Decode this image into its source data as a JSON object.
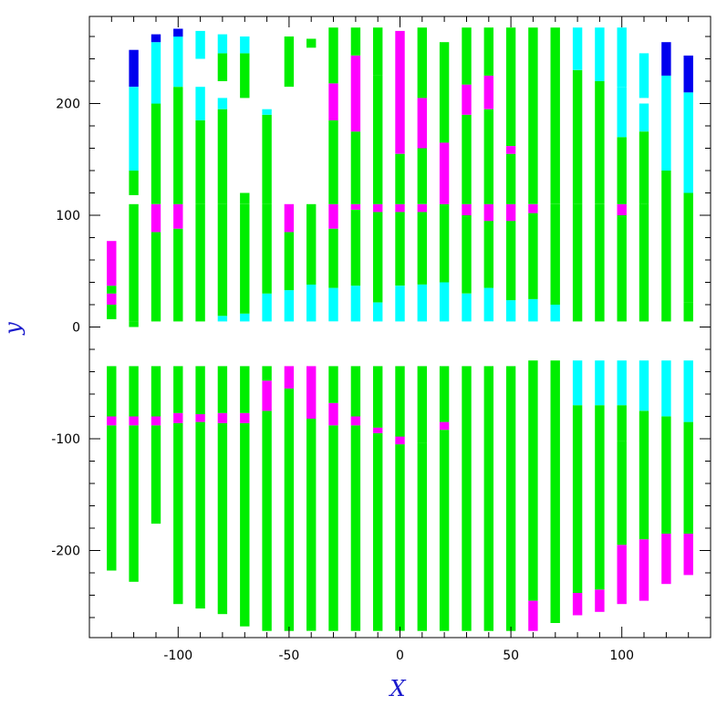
{
  "chart_data": {
    "type": "bar",
    "xlabel": "X",
    "ylabel": "y",
    "xlim": [
      -140,
      140
    ],
    "ylim": [
      -278,
      278
    ],
    "xticks": [
      -100,
      -50,
      0,
      50,
      100
    ],
    "yticks": [
      200,
      100,
      0,
      -100,
      -200
    ],
    "colors": {
      "green": "#00ee00",
      "magenta": "#ff00ff",
      "cyan": "#00ffff",
      "blue": "#0000ee"
    },
    "column_x": [
      -130,
      -120,
      -110,
      -100,
      -90,
      -80,
      -70,
      -60,
      -50,
      -40,
      -30,
      -20,
      -10,
      0,
      10,
      20,
      30,
      40,
      50,
      60,
      70,
      80,
      90,
      100,
      110,
      120,
      130
    ],
    "upper_segments": [
      [
        [
          7,
          20,
          "green"
        ],
        [
          20,
          30,
          "magenta"
        ],
        [
          30,
          37,
          "green"
        ],
        [
          37,
          77,
          "magenta"
        ]
      ],
      [
        [
          0,
          5,
          "green"
        ],
        [
          5,
          110,
          "green"
        ],
        [
          118,
          140,
          "green"
        ],
        [
          140,
          215,
          "cyan"
        ],
        [
          215,
          248,
          "blue"
        ]
      ],
      [
        [
          5,
          85,
          "green"
        ],
        [
          85,
          110,
          "magenta"
        ],
        [
          110,
          200,
          "green"
        ],
        [
          200,
          255,
          "cyan"
        ],
        [
          255,
          262,
          "blue"
        ]
      ],
      [
        [
          5,
          88,
          "green"
        ],
        [
          88,
          110,
          "magenta"
        ],
        [
          110,
          215,
          "green"
        ],
        [
          215,
          260,
          "cyan"
        ],
        [
          260,
          267,
          "blue"
        ]
      ],
      [
        [
          5,
          110,
          "green"
        ],
        [
          110,
          185,
          "green"
        ],
        [
          185,
          215,
          "cyan"
        ],
        [
          240,
          265,
          "cyan"
        ]
      ],
      [
        [
          5,
          10,
          "cyan"
        ],
        [
          10,
          110,
          "green"
        ],
        [
          110,
          195,
          "green"
        ],
        [
          195,
          205,
          "cyan"
        ],
        [
          220,
          245,
          "green"
        ],
        [
          245,
          262,
          "cyan"
        ]
      ],
      [
        [
          5,
          12,
          "cyan"
        ],
        [
          12,
          110,
          "green"
        ],
        [
          110,
          120,
          "green"
        ],
        [
          205,
          245,
          "green"
        ],
        [
          245,
          260,
          "cyan"
        ]
      ],
      [
        [
          5,
          30,
          "cyan"
        ],
        [
          30,
          110,
          "green"
        ],
        [
          110,
          190,
          "green"
        ],
        [
          190,
          195,
          "cyan"
        ]
      ],
      [
        [
          5,
          33,
          "cyan"
        ],
        [
          33,
          85,
          "green"
        ],
        [
          85,
          110,
          "magenta"
        ],
        [
          215,
          260,
          "green"
        ]
      ],
      [
        [
          5,
          38,
          "cyan"
        ],
        [
          38,
          110,
          "green"
        ],
        [
          250,
          258,
          "green"
        ]
      ],
      [
        [
          5,
          35,
          "cyan"
        ],
        [
          35,
          88,
          "green"
        ],
        [
          88,
          110,
          "magenta"
        ],
        [
          110,
          185,
          "green"
        ],
        [
          185,
          218,
          "magenta"
        ],
        [
          218,
          268,
          "green"
        ]
      ],
      [
        [
          5,
          37,
          "cyan"
        ],
        [
          37,
          105,
          "green"
        ],
        [
          105,
          110,
          "magenta"
        ],
        [
          110,
          175,
          "green"
        ],
        [
          175,
          243,
          "magenta"
        ],
        [
          243,
          268,
          "green"
        ]
      ],
      [
        [
          5,
          22,
          "cyan"
        ],
        [
          22,
          103,
          "green"
        ],
        [
          103,
          110,
          "magenta"
        ],
        [
          110,
          225,
          "green"
        ],
        [
          225,
          268,
          "green"
        ]
      ],
      [
        [
          5,
          37,
          "cyan"
        ],
        [
          37,
          103,
          "green"
        ],
        [
          103,
          110,
          "magenta"
        ],
        [
          110,
          155,
          "green"
        ],
        [
          155,
          265,
          "magenta"
        ]
      ],
      [
        [
          5,
          38,
          "cyan"
        ],
        [
          38,
          103,
          "green"
        ],
        [
          103,
          110,
          "magenta"
        ],
        [
          110,
          160,
          "green"
        ],
        [
          160,
          205,
          "magenta"
        ],
        [
          205,
          268,
          "green"
        ]
      ],
      [
        [
          5,
          40,
          "cyan"
        ],
        [
          40,
          110,
          "green"
        ],
        [
          110,
          165,
          "magenta"
        ],
        [
          165,
          255,
          "green"
        ]
      ],
      [
        [
          5,
          30,
          "cyan"
        ],
        [
          30,
          100,
          "green"
        ],
        [
          100,
          110,
          "magenta"
        ],
        [
          110,
          190,
          "green"
        ],
        [
          190,
          217,
          "magenta"
        ],
        [
          217,
          268,
          "green"
        ]
      ],
      [
        [
          5,
          35,
          "cyan"
        ],
        [
          35,
          95,
          "green"
        ],
        [
          95,
          110,
          "magenta"
        ],
        [
          110,
          195,
          "green"
        ],
        [
          195,
          225,
          "magenta"
        ],
        [
          225,
          268,
          "green"
        ]
      ],
      [
        [
          5,
          24,
          "cyan"
        ],
        [
          24,
          95,
          "green"
        ],
        [
          95,
          110,
          "magenta"
        ],
        [
          110,
          155,
          "green"
        ],
        [
          155,
          162,
          "magenta"
        ],
        [
          162,
          268,
          "green"
        ]
      ],
      [
        [
          5,
          25,
          "cyan"
        ],
        [
          25,
          102,
          "green"
        ],
        [
          102,
          110,
          "magenta"
        ],
        [
          110,
          268,
          "green"
        ]
      ],
      [
        [
          5,
          20,
          "cyan"
        ],
        [
          20,
          110,
          "green"
        ],
        [
          110,
          268,
          "green"
        ]
      ],
      [
        [
          5,
          110,
          "green"
        ],
        [
          110,
          230,
          "green"
        ],
        [
          230,
          268,
          "cyan"
        ]
      ],
      [
        [
          5,
          110,
          "green"
        ],
        [
          110,
          220,
          "green"
        ],
        [
          220,
          268,
          "cyan"
        ]
      ],
      [
        [
          5,
          100,
          "green"
        ],
        [
          100,
          110,
          "magenta"
        ],
        [
          110,
          170,
          "green"
        ],
        [
          170,
          215,
          "cyan"
        ],
        [
          215,
          268,
          "cyan"
        ]
      ],
      [
        [
          5,
          110,
          "green"
        ],
        [
          110,
          175,
          "green"
        ],
        [
          175,
          200,
          "cyan"
        ],
        [
          205,
          245,
          "cyan"
        ]
      ],
      [
        [
          5,
          140,
          "green"
        ],
        [
          140,
          225,
          "cyan"
        ],
        [
          225,
          255,
          "blue"
        ]
      ],
      [
        [
          5,
          22,
          "green"
        ],
        [
          22,
          120,
          "green"
        ],
        [
          120,
          210,
          "cyan"
        ],
        [
          210,
          243,
          "blue"
        ]
      ]
    ],
    "lower_segments": [
      [
        [
          -218,
          -88,
          "green"
        ],
        [
          -88,
          -80,
          "magenta"
        ],
        [
          -80,
          -35,
          "green"
        ]
      ],
      [
        [
          -228,
          -88,
          "green"
        ],
        [
          -88,
          -80,
          "magenta"
        ],
        [
          -80,
          -35,
          "green"
        ]
      ],
      [
        [
          -176,
          -88,
          "green"
        ],
        [
          -88,
          -80,
          "magenta"
        ],
        [
          -80,
          -35,
          "green"
        ]
      ],
      [
        [
          -248,
          -86,
          "green"
        ],
        [
          -86,
          -77,
          "magenta"
        ],
        [
          -77,
          -35,
          "green"
        ]
      ],
      [
        [
          -252,
          -85,
          "green"
        ],
        [
          -85,
          -78,
          "magenta"
        ],
        [
          -78,
          -35,
          "green"
        ]
      ],
      [
        [
          -257,
          -86,
          "green"
        ],
        [
          -86,
          -77,
          "magenta"
        ],
        [
          -77,
          -35,
          "green"
        ]
      ],
      [
        [
          -268,
          -86,
          "green"
        ],
        [
          -86,
          -77,
          "magenta"
        ],
        [
          -77,
          -35,
          "green"
        ]
      ],
      [
        [
          -272,
          -75,
          "green"
        ],
        [
          -75,
          -48,
          "magenta"
        ],
        [
          -48,
          -35,
          "green"
        ]
      ],
      [
        [
          -272,
          -55,
          "green"
        ],
        [
          -55,
          -35,
          "magenta"
        ]
      ],
      [
        [
          -272,
          -82,
          "green"
        ],
        [
          -82,
          -35,
          "magenta"
        ]
      ],
      [
        [
          -272,
          -88,
          "green"
        ],
        [
          -88,
          -68,
          "magenta"
        ],
        [
          -68,
          -35,
          "green"
        ]
      ],
      [
        [
          -272,
          -88,
          "green"
        ],
        [
          -88,
          -80,
          "magenta"
        ],
        [
          -80,
          -35,
          "green"
        ]
      ],
      [
        [
          -272,
          -95,
          "green"
        ],
        [
          -95,
          -90,
          "magenta"
        ],
        [
          -90,
          -35,
          "green"
        ]
      ],
      [
        [
          -272,
          -105,
          "green"
        ],
        [
          -105,
          -98,
          "magenta"
        ],
        [
          -98,
          -35,
          "green"
        ]
      ],
      [
        [
          -272,
          -104,
          "green"
        ],
        [
          -104,
          -35,
          "green"
        ]
      ],
      [
        [
          -272,
          -92,
          "green"
        ],
        [
          -92,
          -85,
          "magenta"
        ],
        [
          -85,
          -35,
          "green"
        ]
      ],
      [
        [
          -272,
          -35,
          "green"
        ]
      ],
      [
        [
          -272,
          -35,
          "green"
        ]
      ],
      [
        [
          -272,
          -35,
          "green"
        ]
      ],
      [
        [
          -272,
          -245,
          "magenta"
        ],
        [
          -245,
          -30,
          "green"
        ]
      ],
      [
        [
          -265,
          -30,
          "green"
        ]
      ],
      [
        [
          -258,
          -238,
          "magenta"
        ],
        [
          -238,
          -70,
          "green"
        ],
        [
          -70,
          -30,
          "cyan"
        ]
      ],
      [
        [
          -255,
          -235,
          "magenta"
        ],
        [
          -235,
          -70,
          "green"
        ],
        [
          -70,
          -30,
          "cyan"
        ]
      ],
      [
        [
          -248,
          -195,
          "magenta"
        ],
        [
          -195,
          -102,
          "green"
        ],
        [
          -102,
          -70,
          "green"
        ],
        [
          -70,
          -30,
          "cyan"
        ]
      ],
      [
        [
          -245,
          -190,
          "magenta"
        ],
        [
          -190,
          -102,
          "green"
        ],
        [
          -102,
          -75,
          "green"
        ],
        [
          -75,
          -30,
          "cyan"
        ]
      ],
      [
        [
          -230,
          -185,
          "magenta"
        ],
        [
          -185,
          -80,
          "green"
        ],
        [
          -80,
          -30,
          "cyan"
        ]
      ],
      [
        [
          -222,
          -185,
          "magenta"
        ],
        [
          -185,
          -85,
          "green"
        ],
        [
          -85,
          -30,
          "cyan"
        ]
      ]
    ]
  }
}
